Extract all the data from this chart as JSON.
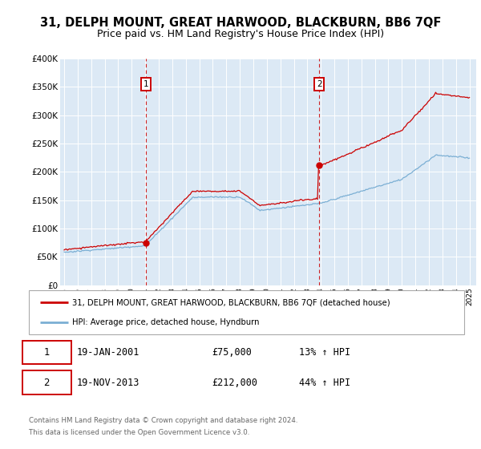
{
  "title": "31, DELPH MOUNT, GREAT HARWOOD, BLACKBURN, BB6 7QF",
  "subtitle": "Price paid vs. HM Land Registry's House Price Index (HPI)",
  "title_fontsize": 10.5,
  "subtitle_fontsize": 9,
  "ylim": [
    0,
    400000
  ],
  "yticks": [
    0,
    50000,
    100000,
    150000,
    200000,
    250000,
    300000,
    350000,
    400000
  ],
  "ytick_labels": [
    "£0",
    "£50K",
    "£100K",
    "£150K",
    "£200K",
    "£250K",
    "£300K",
    "£350K",
    "£400K"
  ],
  "plot_bg_color": "#dce9f5",
  "red_color": "#cc0000",
  "blue_color": "#7bafd4",
  "sale1_year": 2001.05,
  "sale1_price": 75000,
  "sale2_year": 2013.88,
  "sale2_price": 212000,
  "legend_label_red": "31, DELPH MOUNT, GREAT HARWOOD, BLACKBURN, BB6 7QF (detached house)",
  "legend_label_blue": "HPI: Average price, detached house, Hyndburn",
  "footer1": "Contains HM Land Registry data © Crown copyright and database right 2024.",
  "footer2": "This data is licensed under the Open Government Licence v3.0.",
  "note1_num": "1",
  "note1_date": "19-JAN-2001",
  "note1_price": "£75,000",
  "note1_hpi": "13% ↑ HPI",
  "note2_num": "2",
  "note2_date": "19-NOV-2013",
  "note2_price": "£212,000",
  "note2_hpi": "44% ↑ HPI"
}
